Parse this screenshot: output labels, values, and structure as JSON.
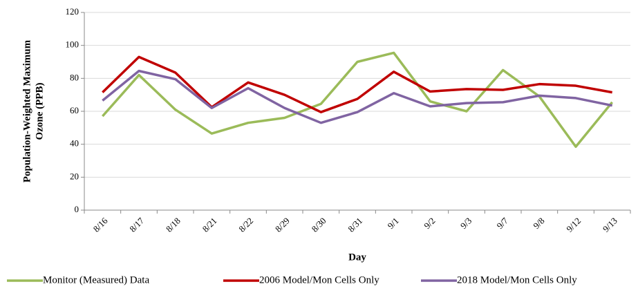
{
  "chart_data": {
    "type": "line",
    "y_label": [
      "Population-Weighted Maximum",
      "Ozone (PPB)"
    ],
    "x_label": "Day",
    "categories": [
      "8/16",
      "8/17",
      "8/18",
      "8/21",
      "8/22",
      "8/29",
      "8/30",
      "8/31",
      "9/1",
      "9/2",
      "9/3",
      "9/7",
      "9/8",
      "9/12",
      "9/13"
    ],
    "series": [
      {
        "name": "Monitor (Measured) Data",
        "color": "#9bbb59",
        "values": [
          57,
          82,
          61,
          46.5,
          53,
          56,
          64.5,
          90,
          95.5,
          66,
          60,
          85,
          69,
          38.5,
          65.5
        ]
      },
      {
        "name": "2006 Model/Mon Cells Only",
        "color": "#c00000",
        "values": [
          71.5,
          93,
          83.5,
          62.5,
          77.5,
          70,
          59.5,
          67.5,
          84,
          72,
          73.5,
          73,
          76.5,
          75.5,
          71.5
        ]
      },
      {
        "name": "2018 Model/Mon Cells Only",
        "color": "#8064a2",
        "values": [
          66.5,
          84.5,
          79.5,
          62,
          74,
          62,
          53,
          59.5,
          71,
          63,
          65,
          65.5,
          69.5,
          68,
          63.5
        ]
      }
    ],
    "ylim": [
      0,
      120
    ],
    "yticks": [
      0,
      20,
      40,
      60,
      80,
      100,
      120
    ],
    "grid": true,
    "legend": "bottom"
  }
}
